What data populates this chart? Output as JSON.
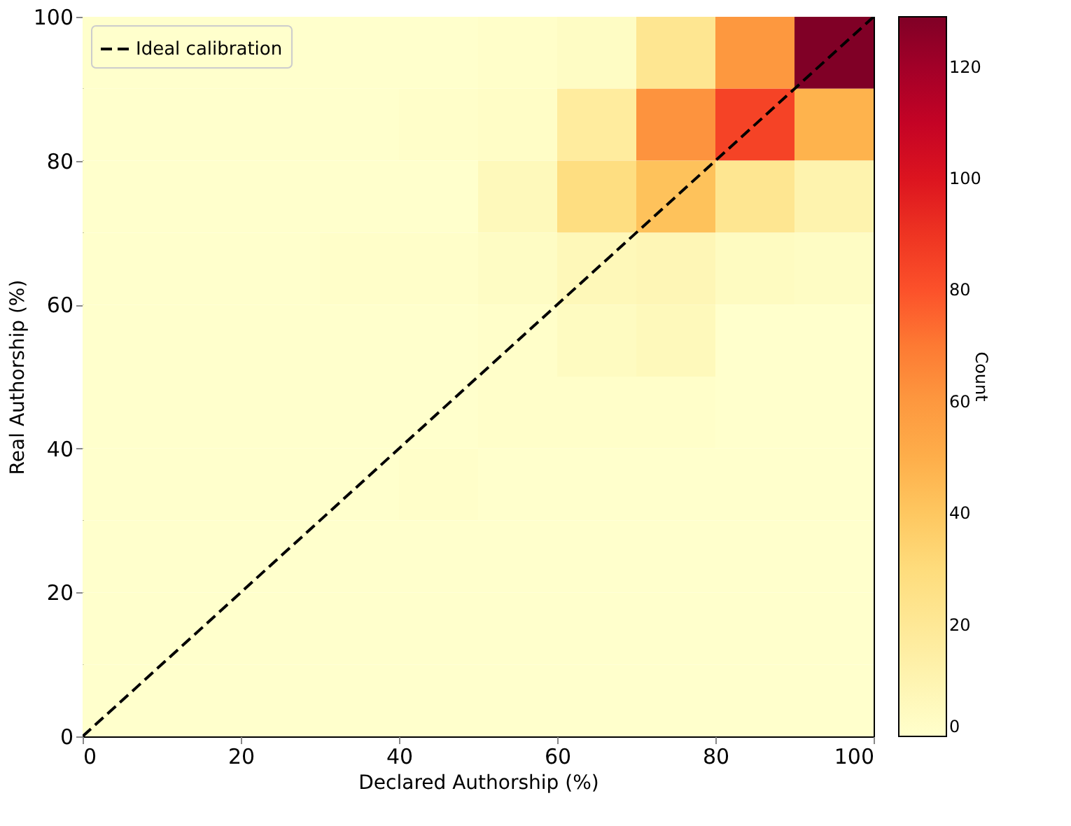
{
  "chart_data": {
    "type": "heatmap",
    "xlabel": "Declared Authorship (%)",
    "ylabel": "Real Authorship (%)",
    "clabel": "Count",
    "x": [
      5,
      15,
      25,
      35,
      45,
      55,
      65,
      75,
      85,
      95
    ],
    "y": [
      95,
      85,
      75,
      65,
      55,
      45,
      35,
      25,
      15,
      5
    ],
    "cells": [
      [
        0,
        0,
        0,
        0,
        0,
        1,
        3,
        22,
        60,
        129
      ],
      [
        0,
        0,
        0,
        0,
        1,
        2,
        17,
        62,
        85,
        48
      ],
      [
        0,
        0,
        0,
        0,
        0,
        6,
        28,
        42,
        22,
        11
      ],
      [
        0,
        0,
        0,
        1,
        1,
        3,
        7,
        8,
        4,
        3
      ],
      [
        0,
        0,
        0,
        0,
        0,
        1,
        4,
        6,
        0,
        0
      ],
      [
        0,
        0,
        0,
        0,
        0,
        1,
        1,
        1,
        0,
        0
      ],
      [
        0,
        0,
        0,
        0,
        1,
        0,
        0,
        0,
        0,
        0
      ],
      [
        0,
        0,
        0,
        0,
        0,
        0,
        0,
        0,
        0,
        0
      ],
      [
        0,
        0,
        0,
        0,
        0,
        0,
        0,
        0,
        0,
        0
      ],
      [
        0,
        0,
        0,
        0,
        0,
        0,
        0,
        0,
        0,
        0
      ]
    ],
    "colors": [
      "#ffffcc",
      "#ffeda0",
      "#fed976",
      "#feb24c",
      "#fd8d3c",
      "#fc4e2a",
      "#e31a1c",
      "#bd0026",
      "#800026"
    ],
    "clim": [
      0,
      129
    ],
    "cticks": [
      0,
      20,
      40,
      60,
      80,
      100,
      120
    ],
    "xlim": [
      0,
      100
    ],
    "xticks": [
      0,
      20,
      40,
      60,
      80,
      100
    ],
    "ylim": [
      0,
      100
    ],
    "yticks": [
      0,
      20,
      40,
      60,
      80,
      100
    ],
    "series": [
      {
        "type": "line",
        "name": "Ideal calibration",
        "color": "#000000",
        "line_style": "dashed",
        "x": [
          0,
          100
        ],
        "values": [
          0,
          100
        ]
      }
    ],
    "legend": "top left",
    "grid": false
  }
}
